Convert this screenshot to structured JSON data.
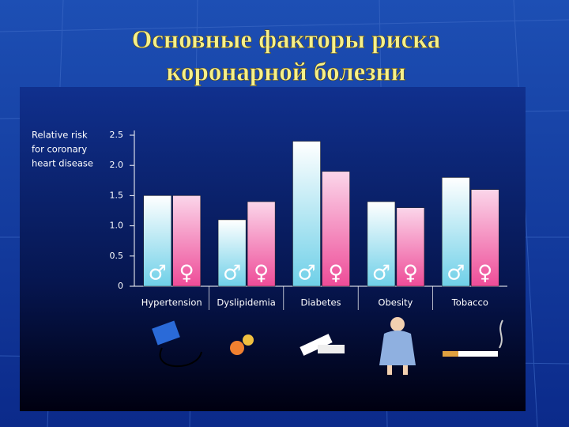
{
  "chart_data": {
    "type": "bar",
    "title": [
      "Основные факторы риска",
      "коронарной болезни"
    ],
    "ylabel": [
      "Relative risk",
      "for coronary",
      "heart disease"
    ],
    "categories": [
      "Hypertension",
      "Dyslipidemia",
      "Diabetes",
      "Obesity",
      "Tobacco"
    ],
    "series": [
      {
        "name": "♂",
        "color": "#7fd6ea",
        "values": [
          1.5,
          1.1,
          2.4,
          1.4,
          1.8
        ]
      },
      {
        "name": "♀",
        "color": "#f0529c",
        "values": [
          1.5,
          1.4,
          1.9,
          1.3,
          1.6
        ]
      }
    ],
    "ylim": [
      0,
      2.5
    ],
    "yticks": [
      0,
      0.5,
      {
        "value": 1,
        "label": "1.0"
      },
      1.5,
      {
        "value": 2,
        "label": "2.0"
      },
      2.5
    ]
  }
}
